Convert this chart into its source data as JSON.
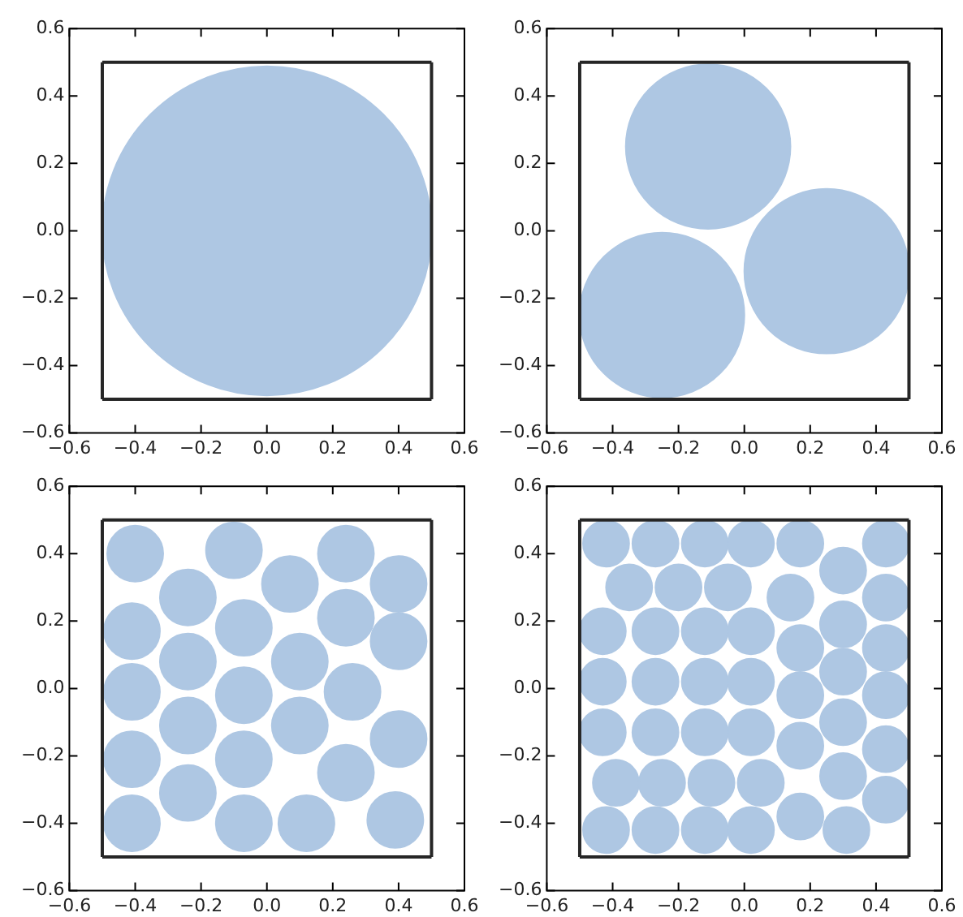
{
  "chart_data": [
    {
      "type": "scatter",
      "marker": "circle",
      "xlim": [
        -0.6,
        0.6
      ],
      "ylim": [
        -0.6,
        0.6
      ],
      "xticks": [
        {
          "value": -0.6,
          "label": "−0.6"
        },
        {
          "value": -0.4,
          "label": "−0.4"
        },
        {
          "value": -0.2,
          "label": "−0.2"
        },
        {
          "value": 0,
          "label": "0.0"
        },
        {
          "value": 0.2,
          "label": "0.2"
        },
        {
          "value": 0.4,
          "label": "0.4"
        },
        {
          "value": 0.6,
          "label": "0.6"
        }
      ],
      "yticks": [
        {
          "value": -0.6,
          "label": "−0.6"
        },
        {
          "value": -0.4,
          "label": "−0.4"
        },
        {
          "value": -0.2,
          "label": "−0.2"
        },
        {
          "value": 0,
          "label": "0.0"
        },
        {
          "value": 0.2,
          "label": "0.2"
        },
        {
          "value": 0.4,
          "label": "0.4"
        },
        {
          "value": 0.6,
          "label": "0.6"
        }
      ],
      "series": [
        {
          "type": "scatter",
          "color": "#aec7e3",
          "x": [
            0
          ],
          "values": [
            0
          ]
        },
        {
          "type": "line",
          "color": "#262626",
          "marker": "none",
          "x": [
            -0.5,
            0.5
          ],
          "values": [
            -0.5,
            -0.5
          ]
        },
        {
          "type": "line",
          "color": "#262626",
          "marker": "none",
          "x": [
            -0.5,
            0.5
          ],
          "values": [
            0.5,
            0.5
          ]
        },
        {
          "type": "line",
          "color": "#262626",
          "marker": "none",
          "x": [
            -0.5,
            -0.5
          ],
          "values": [
            -0.5,
            0.5
          ]
        },
        {
          "type": "line",
          "color": "#262626",
          "marker": "none",
          "x": [
            0.5,
            0.5
          ],
          "values": [
            -0.5,
            0.5
          ]
        }
      ]
    },
    {
      "type": "scatter",
      "marker": "circle",
      "xlim": [
        -0.6,
        0.6
      ],
      "ylim": [
        -0.6,
        0.6
      ],
      "xticks": [
        {
          "value": -0.6,
          "label": "−0.6"
        },
        {
          "value": -0.4,
          "label": "−0.4"
        },
        {
          "value": -0.2,
          "label": "−0.2"
        },
        {
          "value": 0,
          "label": "0.0"
        },
        {
          "value": 0.2,
          "label": "0.2"
        },
        {
          "value": 0.4,
          "label": "0.4"
        },
        {
          "value": 0.6,
          "label": "0.6"
        }
      ],
      "yticks": [
        {
          "value": -0.6,
          "label": "−0.6"
        },
        {
          "value": -0.4,
          "label": "−0.4"
        },
        {
          "value": -0.2,
          "label": "−0.2"
        },
        {
          "value": 0,
          "label": "0.0"
        },
        {
          "value": 0.2,
          "label": "0.2"
        },
        {
          "value": 0.4,
          "label": "0.4"
        },
        {
          "value": 0.6,
          "label": "0.6"
        }
      ],
      "series": [
        {
          "type": "scatter",
          "color": "#aec7e3",
          "x": [
            -0.11,
            0.25,
            -0.25
          ],
          "values": [
            0.25,
            -0.12,
            -0.25
          ]
        },
        {
          "type": "line",
          "color": "#262626",
          "marker": "none",
          "x": [
            -0.5,
            0.5
          ],
          "values": [
            -0.5,
            -0.5
          ]
        },
        {
          "type": "line",
          "color": "#262626",
          "marker": "none",
          "x": [
            -0.5,
            0.5
          ],
          "values": [
            0.5,
            0.5
          ]
        },
        {
          "type": "line",
          "color": "#262626",
          "marker": "none",
          "x": [
            -0.5,
            -0.5
          ],
          "values": [
            -0.5,
            0.5
          ]
        },
        {
          "type": "line",
          "color": "#262626",
          "marker": "none",
          "x": [
            0.5,
            0.5
          ],
          "values": [
            -0.5,
            0.5
          ]
        }
      ]
    },
    {
      "type": "scatter",
      "marker": "circle",
      "xlim": [
        -0.6,
        0.6
      ],
      "ylim": [
        -0.6,
        0.6
      ],
      "xticks": [
        {
          "value": -0.6,
          "label": "−0.6"
        },
        {
          "value": -0.4,
          "label": "−0.4"
        },
        {
          "value": -0.2,
          "label": "−0.2"
        },
        {
          "value": 0,
          "label": "0.0"
        },
        {
          "value": 0.2,
          "label": "0.2"
        },
        {
          "value": 0.4,
          "label": "0.4"
        },
        {
          "value": 0.6,
          "label": "0.6"
        }
      ],
      "yticks": [
        {
          "value": -0.6,
          "label": "−0.6"
        },
        {
          "value": -0.4,
          "label": "−0.4"
        },
        {
          "value": -0.2,
          "label": "−0.2"
        },
        {
          "value": 0,
          "label": "0.0"
        },
        {
          "value": 0.2,
          "label": "0.2"
        },
        {
          "value": 0.4,
          "label": "0.4"
        },
        {
          "value": 0.6,
          "label": "0.6"
        }
      ],
      "series": [
        {
          "type": "scatter",
          "color": "#aec7e3",
          "x": [
            -0.4,
            -0.1,
            0.24,
            -0.24,
            0.07,
            0.4,
            -0.41,
            -0.07,
            0.24,
            -0.24,
            0.1,
            0.4,
            -0.41,
            -0.07,
            0.26,
            -0.24,
            0.1,
            0.4,
            -0.41,
            -0.07,
            0.24,
            -0.24,
            -0.41,
            -0.07,
            0.12,
            0.39
          ],
          "values": [
            0.4,
            0.41,
            0.4,
            0.27,
            0.31,
            0.31,
            0.17,
            0.18,
            0.21,
            0.08,
            0.08,
            0.14,
            -0.01,
            -0.02,
            -0.01,
            -0.11,
            -0.11,
            -0.15,
            -0.21,
            -0.21,
            -0.25,
            -0.31,
            -0.4,
            -0.4,
            -0.4,
            -0.39
          ]
        },
        {
          "type": "line",
          "color": "#262626",
          "marker": "none",
          "x": [
            -0.5,
            0.5
          ],
          "values": [
            -0.5,
            -0.5
          ]
        },
        {
          "type": "line",
          "color": "#262626",
          "marker": "none",
          "x": [
            -0.5,
            0.5
          ],
          "values": [
            0.5,
            0.5
          ]
        },
        {
          "type": "line",
          "color": "#262626",
          "marker": "none",
          "x": [
            -0.5,
            -0.5
          ],
          "values": [
            -0.5,
            0.5
          ]
        },
        {
          "type": "line",
          "color": "#262626",
          "marker": "none",
          "x": [
            0.5,
            0.5
          ],
          "values": [
            -0.5,
            0.5
          ]
        }
      ]
    },
    {
      "type": "scatter",
      "marker": "circle",
      "xlim": [
        -0.6,
        0.6
      ],
      "ylim": [
        -0.6,
        0.6
      ],
      "xticks": [
        {
          "value": -0.6,
          "label": "−0.6"
        },
        {
          "value": -0.4,
          "label": "−0.4"
        },
        {
          "value": -0.2,
          "label": "−0.2"
        },
        {
          "value": 0,
          "label": "0.0"
        },
        {
          "value": 0.2,
          "label": "0.2"
        },
        {
          "value": 0.4,
          "label": "0.4"
        },
        {
          "value": 0.6,
          "label": "0.6"
        }
      ],
      "yticks": [
        {
          "value": -0.6,
          "label": "−0.6"
        },
        {
          "value": -0.4,
          "label": "−0.4"
        },
        {
          "value": -0.2,
          "label": "−0.2"
        },
        {
          "value": 0,
          "label": "0.0"
        },
        {
          "value": 0.2,
          "label": "0.2"
        },
        {
          "value": 0.4,
          "label": "0.4"
        },
        {
          "value": 0.6,
          "label": "0.6"
        }
      ],
      "series": [
        {
          "type": "scatter",
          "color": "#aec7e3",
          "x": [
            -0.42,
            -0.27,
            -0.12,
            0.02,
            0.17,
            0.43,
            0.3,
            -0.35,
            -0.2,
            -0.05,
            0.14,
            0.43,
            -0.43,
            -0.27,
            -0.12,
            0.02,
            0.3,
            0.17,
            0.43,
            0.3,
            -0.43,
            -0.27,
            -0.12,
            0.02,
            0.17,
            0.43,
            0.3,
            -0.43,
            -0.27,
            -0.12,
            0.02,
            0.17,
            0.43,
            0.3,
            -0.39,
            -0.25,
            -0.1,
            0.05,
            0.17,
            0.43,
            -0.42,
            -0.27,
            -0.12,
            0.02,
            0.31
          ],
          "values": [
            0.43,
            0.43,
            0.43,
            0.43,
            0.43,
            0.43,
            0.35,
            0.3,
            0.3,
            0.3,
            0.27,
            0.27,
            0.17,
            0.17,
            0.17,
            0.17,
            0.19,
            0.12,
            0.12,
            0.05,
            0.02,
            0.02,
            0.02,
            0.02,
            -0.02,
            -0.02,
            -0.1,
            -0.13,
            -0.13,
            -0.13,
            -0.13,
            -0.17,
            -0.18,
            -0.26,
            -0.28,
            -0.28,
            -0.28,
            -0.28,
            -0.38,
            -0.33,
            -0.42,
            -0.42,
            -0.42,
            -0.42,
            -0.42
          ]
        },
        {
          "type": "line",
          "color": "#262626",
          "marker": "none",
          "x": [
            -0.5,
            0.5
          ],
          "values": [
            -0.5,
            -0.5
          ]
        },
        {
          "type": "line",
          "color": "#262626",
          "marker": "none",
          "x": [
            -0.5,
            0.5
          ],
          "values": [
            0.5,
            0.5
          ]
        },
        {
          "type": "line",
          "color": "#262626",
          "marker": "none",
          "x": [
            -0.5,
            -0.5
          ],
          "values": [
            -0.5,
            0.5
          ]
        },
        {
          "type": "line",
          "color": "#262626",
          "marker": "none",
          "x": [
            0.5,
            0.5
          ],
          "values": [
            -0.5,
            0.5
          ]
        }
      ]
    }
  ]
}
